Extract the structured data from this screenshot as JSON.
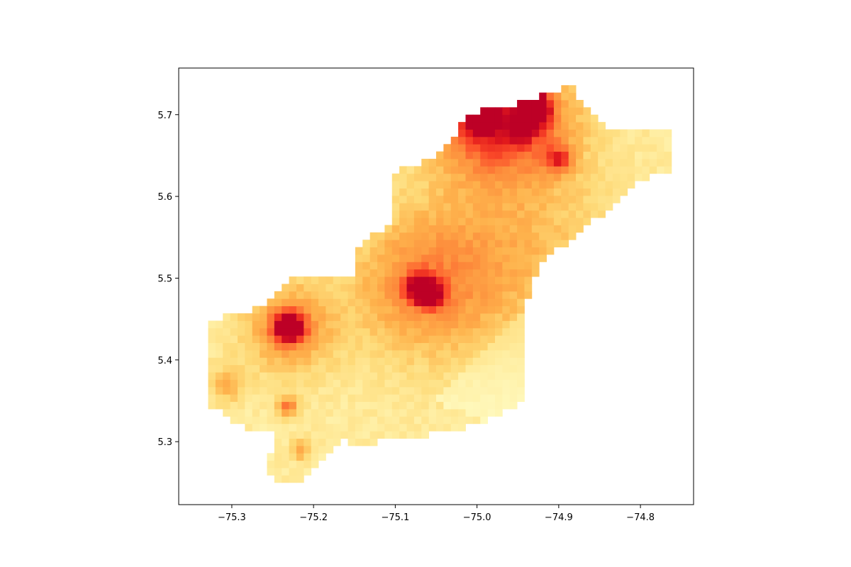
{
  "map": {
    "type": "raster-heatmap",
    "title": "",
    "xlabel": "",
    "ylabel": "",
    "xlim": [
      -75.365,
      -74.735
    ],
    "ylim": [
      5.223,
      5.757
    ],
    "cell_size_deg": 0.009,
    "colormap": "YlOrRd",
    "colors": {
      "background": "#ffffff",
      "axis": "#000000",
      "stops": [
        "#ffffcc",
        "#ffeda0",
        "#fed976",
        "#feb24c",
        "#fd8d3c",
        "#fc4e2a",
        "#e31a1c",
        "#bd0026"
      ]
    },
    "x_ticks": [
      {
        "value": -75.3,
        "label": "−75.3"
      },
      {
        "value": -75.2,
        "label": "−75.2"
      },
      {
        "value": -75.1,
        "label": "−75.1"
      },
      {
        "value": -75.0,
        "label": "−75.0"
      },
      {
        "value": -74.9,
        "label": "−74.9"
      },
      {
        "value": -74.8,
        "label": "−74.8"
      }
    ],
    "y_ticks": [
      {
        "value": 5.3,
        "label": "5.3"
      },
      {
        "value": 5.4,
        "label": "5.4"
      },
      {
        "value": 5.5,
        "label": "5.5"
      },
      {
        "value": 5.6,
        "label": "5.6"
      },
      {
        "value": 5.7,
        "label": "5.7"
      }
    ],
    "region_outline": [
      [
        -75.333,
        5.448
      ],
      [
        -75.26,
        5.465
      ],
      [
        -75.232,
        5.5
      ],
      [
        -75.222,
        5.505
      ],
      [
        -75.15,
        5.505
      ],
      [
        -75.145,
        5.54
      ],
      [
        -75.115,
        5.56
      ],
      [
        -75.1,
        5.58
      ],
      [
        -75.1,
        5.63
      ],
      [
        -75.07,
        5.64
      ],
      [
        -75.03,
        5.665
      ],
      [
        -75.015,
        5.7
      ],
      [
        -74.99,
        5.705
      ],
      [
        -74.955,
        5.71
      ],
      [
        -74.92,
        5.725
      ],
      [
        -74.885,
        5.735
      ],
      [
        -74.86,
        5.7
      ],
      [
        -74.83,
        5.678
      ],
      [
        -74.762,
        5.678
      ],
      [
        -74.765,
        5.63
      ],
      [
        -74.8,
        5.62
      ],
      [
        -74.83,
        5.59
      ],
      [
        -74.865,
        5.565
      ],
      [
        -74.895,
        5.54
      ],
      [
        -74.92,
        5.52
      ],
      [
        -74.935,
        5.49
      ],
      [
        -74.94,
        5.46
      ],
      [
        -74.94,
        5.39
      ],
      [
        -74.948,
        5.345
      ],
      [
        -74.99,
        5.325
      ],
      [
        -75.04,
        5.31
      ],
      [
        -75.11,
        5.305
      ],
      [
        -75.125,
        5.295
      ],
      [
        -75.165,
        5.3
      ],
      [
        -75.21,
        5.255
      ],
      [
        -75.245,
        5.25
      ],
      [
        -75.255,
        5.265
      ],
      [
        -75.25,
        5.31
      ],
      [
        -75.29,
        5.32
      ],
      [
        -75.33,
        5.345
      ],
      [
        -75.33,
        5.42
      ]
    ],
    "gradients": [
      {
        "center": [
          -75.23,
          5.44
        ],
        "peak": 1.0,
        "radius": 0.012
      },
      {
        "center": [
          -75.23,
          5.44
        ],
        "peak": 0.4,
        "radius": 0.04
      },
      {
        "center": [
          -74.998,
          5.695
        ],
        "peak": 1.0,
        "radius": 0.01
      },
      {
        "center": [
          -74.99,
          5.704
        ],
        "peak": 0.85,
        "radius": 0.01
      },
      {
        "center": [
          -74.998,
          5.695
        ],
        "peak": 0.45,
        "radius": 0.045
      },
      {
        "center": [
          -74.928,
          5.703
        ],
        "peak": 0.75,
        "radius": 0.012
      },
      {
        "center": [
          -74.945,
          5.685
        ],
        "peak": 0.65,
        "radius": 0.01
      },
      {
        "center": [
          -74.94,
          5.695
        ],
        "peak": 0.4,
        "radius": 0.05
      },
      {
        "center": [
          -75.07,
          5.488
        ],
        "peak": 0.75,
        "radius": 0.012
      },
      {
        "center": [
          -75.055,
          5.478
        ],
        "peak": 0.65,
        "radius": 0.01
      },
      {
        "center": [
          -75.07,
          5.488
        ],
        "peak": 0.35,
        "radius": 0.06
      },
      {
        "center": [
          -74.96,
          5.54
        ],
        "peak": 0.25,
        "radius": 0.09
      },
      {
        "center": [
          -74.9,
          5.645
        ],
        "peak": 0.4,
        "radius": 0.012
      },
      {
        "center": [
          -75.232,
          5.342
        ],
        "peak": 0.45,
        "radius": 0.009
      },
      {
        "center": [
          -75.215,
          5.29
        ],
        "peak": 0.35,
        "radius": 0.009
      },
      {
        "center": [
          -75.305,
          5.37
        ],
        "peak": 0.3,
        "radius": 0.015
      },
      {
        "center": [
          -74.93,
          5.725
        ],
        "peak": 0.55,
        "radius": 0.01
      }
    ],
    "low_zone": [
      [
        -74.99,
        5.325
      ],
      [
        -74.945,
        5.345
      ],
      [
        -74.94,
        5.46
      ],
      [
        -74.9,
        5.5
      ],
      [
        -74.85,
        5.56
      ],
      [
        -74.8,
        5.61
      ],
      [
        -74.77,
        5.64
      ],
      [
        -75.0,
        5.4
      ],
      [
        -75.05,
        5.35
      ]
    ]
  }
}
